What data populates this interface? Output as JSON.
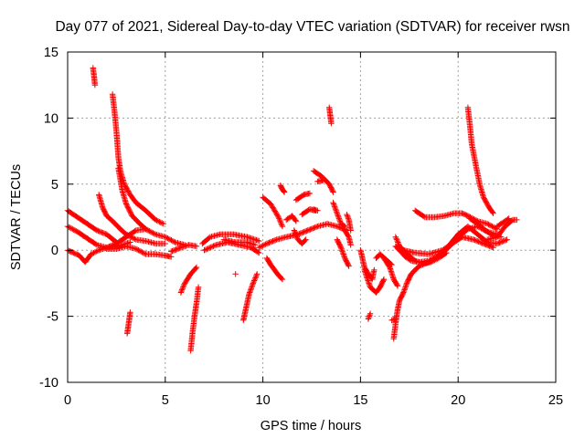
{
  "chart_data": {
    "type": "scatter",
    "title": "Day 077 of 2021, Sidereal Day-to-day VTEC variation (SDTVAR) for receiver rwsn",
    "xlabel": "GPS time / hours",
    "ylabel": "SDTVAR / TECUs",
    "xlim": [
      0,
      25
    ],
    "ylim": [
      -10,
      15
    ],
    "xticks": [
      0,
      5,
      10,
      15,
      20,
      25
    ],
    "yticks": [
      -10,
      -5,
      0,
      5,
      10,
      15
    ],
    "grid": true,
    "marker": "+",
    "color": "#ff0000",
    "tracks": [
      {
        "name": "track-01",
        "points": [
          [
            0.0,
            3.0
          ],
          [
            0.5,
            2.5
          ],
          [
            1.0,
            2.0
          ],
          [
            1.5,
            1.5
          ],
          [
            2.0,
            1.2
          ],
          [
            2.5,
            0.6
          ]
        ]
      },
      {
        "name": "track-02",
        "points": [
          [
            0.0,
            0.0
          ],
          [
            0.3,
            -0.2
          ],
          [
            0.6,
            -0.4
          ],
          [
            0.9,
            -0.9
          ],
          [
            1.2,
            -0.3
          ],
          [
            1.6,
            0.0
          ],
          [
            2.0,
            0.2
          ],
          [
            2.6,
            0.3
          ],
          [
            3.2,
            0.6
          ]
        ]
      },
      {
        "name": "track-03",
        "points": [
          [
            0.0,
            1.8
          ],
          [
            0.5,
            1.4
          ],
          [
            1.0,
            0.9
          ],
          [
            1.5,
            0.4
          ],
          [
            2.0,
            0.2
          ],
          [
            2.5,
            0.5
          ],
          [
            3.0,
            1.0
          ],
          [
            3.5,
            1.5
          ],
          [
            4.0,
            1.6
          ]
        ]
      },
      {
        "name": "track-04",
        "points": [
          [
            1.3,
            13.8
          ],
          [
            1.35,
            13.2
          ],
          [
            1.4,
            12.5
          ]
        ]
      },
      {
        "name": "track-05",
        "points": [
          [
            1.6,
            4.2
          ],
          [
            1.8,
            3.2
          ],
          [
            2.0,
            2.6
          ],
          [
            2.3,
            2.2
          ],
          [
            2.7,
            1.6
          ],
          [
            3.0,
            1.2
          ],
          [
            3.5,
            0.8
          ],
          [
            4.0,
            0.7
          ],
          [
            4.5,
            0.5
          ],
          [
            5.0,
            0.5
          ]
        ]
      },
      {
        "name": "track-06",
        "points": [
          [
            2.3,
            11.8
          ],
          [
            2.4,
            10.5
          ],
          [
            2.5,
            9.0
          ],
          [
            2.6,
            7.0
          ],
          [
            2.7,
            6.0
          ],
          [
            2.9,
            5.0
          ],
          [
            3.2,
            4.2
          ],
          [
            3.5,
            3.6
          ],
          [
            4.0,
            3.0
          ],
          [
            4.5,
            2.3
          ],
          [
            4.9,
            2.0
          ]
        ]
      },
      {
        "name": "track-07",
        "points": [
          [
            2.6,
            6.2
          ],
          [
            2.8,
            4.5
          ],
          [
            3.0,
            3.5
          ],
          [
            3.3,
            2.6
          ],
          [
            3.7,
            2.0
          ],
          [
            4.0,
            1.6
          ],
          [
            4.5,
            1.2
          ],
          [
            5.0,
            1.0
          ],
          [
            5.5,
            0.6
          ],
          [
            6.0,
            0.4
          ]
        ]
      },
      {
        "name": "track-08",
        "points": [
          [
            2.0,
            0.1
          ],
          [
            2.5,
            0.1
          ],
          [
            3.0,
            0.3
          ],
          [
            3.5,
            0.1
          ],
          [
            4.0,
            -0.3
          ],
          [
            4.5,
            -0.3
          ],
          [
            5.0,
            -0.4
          ],
          [
            5.3,
            -0.5
          ]
        ]
      },
      {
        "name": "track-09",
        "points": [
          [
            3.2,
            -4.7
          ],
          [
            3.15,
            -5.3
          ],
          [
            3.1,
            -5.8
          ],
          [
            3.05,
            -6.3
          ]
        ]
      },
      {
        "name": "track-10",
        "points": [
          [
            5.3,
            -0.1
          ],
          [
            5.8,
            0.2
          ],
          [
            6.2,
            0.4
          ],
          [
            6.6,
            0.3
          ]
        ]
      },
      {
        "name": "track-11",
        "points": [
          [
            5.8,
            -3.2
          ],
          [
            6.0,
            -2.5
          ],
          [
            6.3,
            -1.8
          ],
          [
            6.6,
            -1.3
          ]
        ]
      },
      {
        "name": "track-12",
        "points": [
          [
            6.7,
            -2.8
          ],
          [
            6.6,
            -4.0
          ],
          [
            6.5,
            -5.0
          ],
          [
            6.4,
            -6.2
          ],
          [
            6.3,
            -7.6
          ]
        ]
      },
      {
        "name": "track-13",
        "points": [
          [
            6.9,
            0.5
          ],
          [
            7.3,
            1.0
          ],
          [
            7.8,
            1.2
          ],
          [
            8.5,
            1.2
          ],
          [
            9.2,
            1.0
          ],
          [
            9.8,
            0.7
          ]
        ]
      },
      {
        "name": "track-14",
        "points": [
          [
            7.0,
            0.0
          ],
          [
            7.6,
            0.4
          ],
          [
            8.2,
            0.6
          ],
          [
            8.8,
            0.4
          ],
          [
            9.4,
            0.2
          ],
          [
            9.8,
            -0.2
          ]
        ]
      },
      {
        "name": "track-15",
        "points": [
          [
            8.0,
            0.8
          ],
          [
            8.6,
            0.6
          ],
          [
            9.2,
            0.6
          ],
          [
            9.6,
            0.4
          ]
        ]
      },
      {
        "name": "track-16",
        "points": [
          [
            8.6,
            -1.8
          ]
        ]
      },
      {
        "name": "track-17",
        "points": [
          [
            9.7,
            -1.8
          ],
          [
            9.5,
            -2.5
          ],
          [
            9.3,
            -3.3
          ],
          [
            9.15,
            -4.3
          ],
          [
            9.0,
            -5.3
          ]
        ]
      },
      {
        "name": "track-18",
        "points": [
          [
            9.8,
            0.2
          ],
          [
            10.2,
            0.5
          ],
          [
            10.7,
            0.8
          ],
          [
            11.2,
            1.0
          ],
          [
            11.8,
            1.2
          ],
          [
            12.3,
            1.5
          ],
          [
            12.8,
            1.8
          ],
          [
            13.3,
            2.0
          ],
          [
            13.8,
            1.8
          ],
          [
            14.3,
            1.5
          ]
        ]
      },
      {
        "name": "track-19",
        "points": [
          [
            10.0,
            4.0
          ],
          [
            10.4,
            3.5
          ],
          [
            10.8,
            2.5
          ],
          [
            11.0,
            1.8
          ]
        ]
      },
      {
        "name": "track-20",
        "points": [
          [
            10.2,
            -0.6
          ],
          [
            10.4,
            -1.1
          ],
          [
            10.6,
            -1.5
          ],
          [
            10.8,
            -1.9
          ],
          [
            11.0,
            -2.2
          ]
        ]
      },
      {
        "name": "track-21",
        "points": [
          [
            10.9,
            4.9
          ],
          [
            11.0,
            4.6
          ],
          [
            11.1,
            4.4
          ]
        ]
      },
      {
        "name": "track-22",
        "points": [
          [
            11.2,
            2.3
          ],
          [
            11.5,
            2.6
          ],
          [
            11.7,
            2.2
          ]
        ]
      },
      {
        "name": "track-23",
        "points": [
          [
            11.6,
            1.5
          ],
          [
            11.8,
            0.8
          ],
          [
            12.0,
            0.5
          ],
          [
            12.2,
            0.8
          ]
        ]
      },
      {
        "name": "track-24",
        "points": [
          [
            11.7,
            3.8
          ],
          [
            12.1,
            4.2
          ],
          [
            12.4,
            4.3
          ]
        ]
      },
      {
        "name": "track-25",
        "points": [
          [
            12.0,
            2.7
          ],
          [
            12.4,
            3.1
          ],
          [
            12.7,
            3.0
          ]
        ]
      },
      {
        "name": "track-26",
        "points": [
          [
            12.6,
            3.1
          ],
          [
            12.8,
            3.0
          ]
        ]
      },
      {
        "name": "track-27",
        "points": [
          [
            12.6,
            6.0
          ],
          [
            13.0,
            5.6
          ],
          [
            13.4,
            5.0
          ],
          [
            13.6,
            4.4
          ]
        ]
      },
      {
        "name": "track-28",
        "points": [
          [
            12.8,
            5.2
          ],
          [
            13.1,
            5.3
          ]
        ]
      },
      {
        "name": "track-29",
        "points": [
          [
            13.4,
            10.8
          ],
          [
            13.45,
            10.2
          ],
          [
            13.5,
            9.6
          ]
        ]
      },
      {
        "name": "track-30",
        "points": [
          [
            13.6,
            3.6
          ],
          [
            13.8,
            2.8
          ],
          [
            14.0,
            2.0
          ],
          [
            14.2,
            1.8
          ]
        ]
      },
      {
        "name": "track-31",
        "points": [
          [
            14.2,
            1.5
          ],
          [
            14.4,
            1.0
          ],
          [
            14.5,
            0.4
          ]
        ]
      },
      {
        "name": "track-32",
        "points": [
          [
            13.8,
            0.8
          ],
          [
            14.0,
            0.2
          ],
          [
            14.2,
            -0.6
          ],
          [
            14.4,
            -1.2
          ]
        ]
      },
      {
        "name": "track-33",
        "points": [
          [
            14.3,
            2.7
          ],
          [
            14.4,
            2.3
          ],
          [
            14.5,
            1.5
          ]
        ]
      },
      {
        "name": "track-34",
        "points": [
          [
            15.0,
            0.0
          ],
          [
            15.1,
            -0.6
          ],
          [
            15.2,
            -1.3
          ],
          [
            15.4,
            -1.8
          ],
          [
            15.6,
            -2.2
          ],
          [
            15.7,
            -1.5
          ]
        ]
      },
      {
        "name": "track-35",
        "points": [
          [
            15.2,
            -1.5
          ],
          [
            15.5,
            -2.8
          ],
          [
            15.8,
            -3.2
          ],
          [
            16.0,
            -2.8
          ],
          [
            16.2,
            -2.2
          ]
        ]
      },
      {
        "name": "track-36",
        "points": [
          [
            15.8,
            -0.6
          ],
          [
            16.0,
            -0.3
          ],
          [
            16.3,
            -0.7
          ],
          [
            16.6,
            -1.1
          ]
        ]
      },
      {
        "name": "track-37",
        "points": [
          [
            15.5,
            -4.8
          ],
          [
            15.4,
            -5.2
          ]
        ]
      },
      {
        "name": "track-38",
        "points": [
          [
            16.2,
            -0.6
          ],
          [
            16.5,
            -1.3
          ],
          [
            16.7,
            -2.2
          ],
          [
            16.9,
            -2.7
          ]
        ]
      },
      {
        "name": "track-39",
        "points": [
          [
            16.6,
            -5.3
          ],
          [
            16.8,
            -5.2
          ]
        ]
      },
      {
        "name": "track-40",
        "points": [
          [
            16.7,
            -6.7
          ],
          [
            16.8,
            -5.5
          ],
          [
            16.9,
            -4.5
          ],
          [
            17.0,
            -3.8
          ],
          [
            17.2,
            -3.2
          ],
          [
            17.4,
            -2.4
          ],
          [
            17.6,
            -1.8
          ],
          [
            18.0,
            -1.2
          ],
          [
            18.5,
            -0.9
          ],
          [
            19.0,
            -0.5
          ],
          [
            19.5,
            0.2
          ],
          [
            20.0,
            1.0
          ],
          [
            20.5,
            1.6
          ],
          [
            21.0,
            1.8
          ],
          [
            21.5,
            1.4
          ],
          [
            22.0,
            1.2
          ]
        ]
      },
      {
        "name": "track-41",
        "points": [
          [
            16.8,
            0.3
          ],
          [
            17.0,
            0.0
          ],
          [
            17.3,
            -0.5
          ],
          [
            17.6,
            -0.8
          ],
          [
            18.0,
            -0.9
          ],
          [
            18.5,
            -0.8
          ],
          [
            19.0,
            -0.4
          ],
          [
            19.5,
            0.3
          ],
          [
            20.0,
            1.2
          ],
          [
            20.5,
            1.8
          ],
          [
            21.0,
            1.2
          ],
          [
            21.5,
            0.6
          ],
          [
            22.0,
            0.5
          ],
          [
            22.5,
            0.8
          ]
        ]
      },
      {
        "name": "track-42",
        "points": [
          [
            16.8,
            1.0
          ],
          [
            17.0,
            0.3
          ],
          [
            17.4,
            -0.3
          ],
          [
            17.8,
            -0.8
          ],
          [
            18.2,
            -1.0
          ],
          [
            18.6,
            -0.9
          ],
          [
            19.0,
            -0.6
          ],
          [
            19.4,
            -0.2
          ]
        ]
      },
      {
        "name": "track-43",
        "points": [
          [
            17.2,
            0.0
          ],
          [
            17.8,
            -0.2
          ],
          [
            18.5,
            -0.3
          ],
          [
            19.2,
            0.0
          ],
          [
            19.8,
            0.6
          ],
          [
            20.2,
            1.0
          ],
          [
            20.8,
            0.8
          ],
          [
            21.3,
            0.5
          ],
          [
            21.8,
            0.2
          ]
        ]
      },
      {
        "name": "track-44",
        "points": [
          [
            17.8,
            3.0
          ],
          [
            18.3,
            2.5
          ],
          [
            18.8,
            2.5
          ],
          [
            19.3,
            2.6
          ],
          [
            19.8,
            2.8
          ],
          [
            20.2,
            2.8
          ],
          [
            20.5,
            2.6
          ],
          [
            21.0,
            2.2
          ],
          [
            21.5,
            2.0
          ],
          [
            22.0,
            1.6
          ]
        ]
      },
      {
        "name": "track-45",
        "points": [
          [
            20.5,
            10.8
          ],
          [
            20.6,
            9.5
          ],
          [
            20.7,
            8.0
          ],
          [
            20.9,
            6.5
          ],
          [
            21.1,
            5.0
          ],
          [
            21.3,
            4.0
          ],
          [
            21.6,
            3.2
          ],
          [
            21.8,
            2.8
          ]
        ]
      },
      {
        "name": "track-46",
        "points": [
          [
            20.6,
            2.4
          ],
          [
            21.0,
            2.0
          ],
          [
            21.4,
            1.5
          ],
          [
            21.8,
            1.1
          ],
          [
            22.2,
            1.0
          ]
        ]
      },
      {
        "name": "track-47",
        "points": [
          [
            21.5,
            0.8
          ],
          [
            22.0,
            1.0
          ],
          [
            22.4,
            1.8
          ],
          [
            22.8,
            2.3
          ],
          [
            23.0,
            2.3
          ]
        ]
      },
      {
        "name": "track-48",
        "points": [
          [
            22.0,
            1.8
          ],
          [
            22.3,
            2.1
          ],
          [
            22.6,
            2.4
          ]
        ]
      }
    ]
  }
}
